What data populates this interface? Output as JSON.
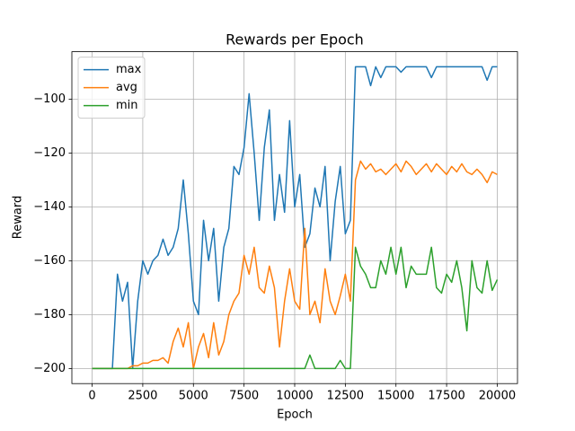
{
  "chart_data": {
    "type": "line",
    "title": "Rewards per Epoch",
    "xlabel": "Epoch",
    "ylabel": "Reward",
    "x": [
      0,
      250,
      500,
      750,
      1000,
      1250,
      1500,
      1750,
      2000,
      2250,
      2500,
      2750,
      3000,
      3250,
      3500,
      3750,
      4000,
      4250,
      4500,
      4750,
      5000,
      5250,
      5500,
      5750,
      6000,
      6250,
      6500,
      6750,
      7000,
      7250,
      7500,
      7750,
      8000,
      8250,
      8500,
      8750,
      9000,
      9250,
      9500,
      9750,
      10000,
      10250,
      10500,
      10750,
      11000,
      11250,
      11500,
      11750,
      12000,
      12250,
      12500,
      12750,
      13000,
      13250,
      13500,
      13750,
      14000,
      14250,
      14500,
      14750,
      15000,
      15250,
      15500,
      15750,
      16000,
      16250,
      16500,
      16750,
      17000,
      17250,
      17500,
      17750,
      18000,
      18250,
      18500,
      18750,
      19000,
      19250,
      19500,
      19750,
      20000
    ],
    "series": [
      {
        "name": "max",
        "color": "#1f77b4",
        "values": [
          -200,
          -200,
          -200,
          -200,
          -200,
          -165,
          -175,
          -168,
          -200,
          -175,
          -160,
          -165,
          -160,
          -158,
          -152,
          -158,
          -155,
          -148,
          -130,
          -150,
          -175,
          -180,
          -145,
          -160,
          -148,
          -175,
          -155,
          -148,
          -125,
          -128,
          -118,
          -98,
          -120,
          -145,
          -118,
          -104,
          -145,
          -128,
          -142,
          -108,
          -140,
          -128,
          -155,
          -150,
          -133,
          -140,
          -125,
          -160,
          -138,
          -125,
          -150,
          -145,
          -88,
          -88,
          -88,
          -95,
          -88,
          -92,
          -88,
          -88,
          -88,
          -90,
          -88,
          -88,
          -88,
          -88,
          -88,
          -92,
          -88,
          -88,
          -88,
          -88,
          -88,
          -88,
          -88,
          -88,
          -88,
          -88,
          -93,
          -88,
          -88
        ]
      },
      {
        "name": "avg",
        "color": "#ff7f0e",
        "values": [
          -200,
          -200,
          -200,
          -200,
          -200,
          -200,
          -200,
          -200,
          -199,
          -199,
          -198,
          -198,
          -197,
          -197,
          -196,
          -198,
          -190,
          -185,
          -192,
          -183,
          -200,
          -192,
          -187,
          -196,
          -183,
          -195,
          -190,
          -180,
          -175,
          -172,
          -158,
          -165,
          -155,
          -170,
          -172,
          -162,
          -170,
          -192,
          -175,
          -163,
          -175,
          -178,
          -148,
          -180,
          -175,
          -183,
          -163,
          -175,
          -180,
          -173,
          -165,
          -175,
          -130,
          -123,
          -126,
          -124,
          -127,
          -126,
          -128,
          -126,
          -124,
          -127,
          -123,
          -125,
          -128,
          -126,
          -124,
          -127,
          -124,
          -126,
          -128,
          -125,
          -127,
          -124,
          -127,
          -128,
          -126,
          -128,
          -131,
          -127,
          -128
        ]
      },
      {
        "name": "min",
        "color": "#2ca02c",
        "values": [
          -200,
          -200,
          -200,
          -200,
          -200,
          -200,
          -200,
          -200,
          -200,
          -200,
          -200,
          -200,
          -200,
          -200,
          -200,
          -200,
          -200,
          -200,
          -200,
          -200,
          -200,
          -200,
          -200,
          -200,
          -200,
          -200,
          -200,
          -200,
          -200,
          -200,
          -200,
          -200,
          -200,
          -200,
          -200,
          -200,
          -200,
          -200,
          -200,
          -200,
          -200,
          -200,
          -200,
          -195,
          -200,
          -200,
          -200,
          -200,
          -200,
          -197,
          -200,
          -200,
          -155,
          -162,
          -165,
          -170,
          -170,
          -160,
          -165,
          -155,
          -165,
          -155,
          -170,
          -162,
          -165,
          -165,
          -165,
          -155,
          -170,
          -172,
          -165,
          -168,
          -160,
          -170,
          -186,
          -160,
          -170,
          -172,
          -160,
          -171,
          -167
        ]
      }
    ],
    "xlim": [
      -1000,
      21000
    ],
    "ylim": [
      -205.6,
      -82.4
    ],
    "xticks": [
      0,
      2500,
      5000,
      7500,
      10000,
      12500,
      15000,
      17500,
      20000
    ],
    "yticks": [
      {
        "value": -200,
        "label": "−200"
      },
      {
        "value": -180,
        "label": "−180"
      },
      {
        "value": -160,
        "label": "−160"
      },
      {
        "value": -140,
        "label": "−140"
      },
      {
        "value": -120,
        "label": "−120"
      },
      {
        "value": -100,
        "label": "−100"
      }
    ],
    "grid": true,
    "legend": "upper left"
  }
}
